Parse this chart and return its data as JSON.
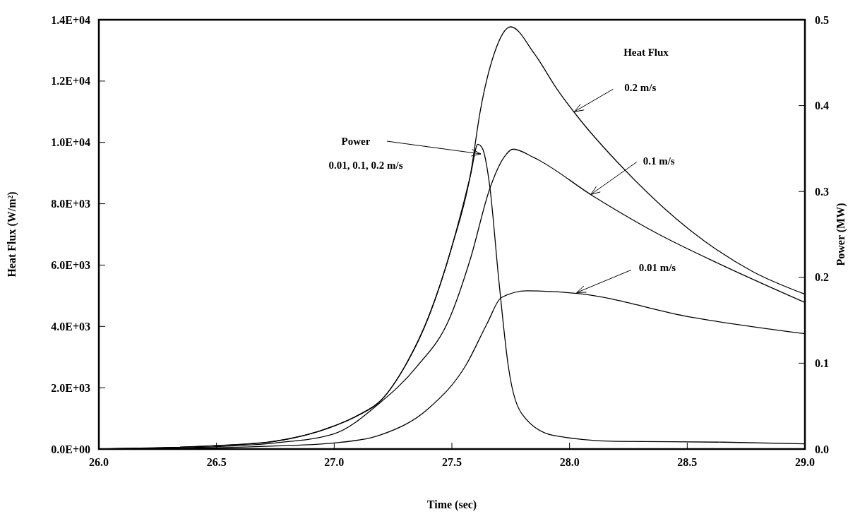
{
  "chart_data": {
    "type": "line",
    "xlabel": "Time (sec)",
    "ylabel": "Heat Flux (W/m²)",
    "y2label": "Power (MW)",
    "xlim": [
      26,
      29
    ],
    "xticks": [
      {
        "value": 26,
        "label": "26.0"
      },
      {
        "value": 26.5,
        "label": "26.5"
      },
      {
        "value": 27,
        "label": "27.0"
      },
      {
        "value": 27.5,
        "label": "27.5"
      },
      {
        "value": 28,
        "label": "28.0"
      },
      {
        "value": 28.5,
        "label": "28.5"
      },
      {
        "value": 29,
        "label": "29.0"
      }
    ],
    "ylim": [
      0,
      14000
    ],
    "yticks": [
      {
        "value": 0,
        "label": "0.0E+00"
      },
      {
        "value": 2000,
        "label": "2.0E+03"
      },
      {
        "value": 4000,
        "label": "4.0E+03"
      },
      {
        "value": 6000,
        "label": "6.0E+03"
      },
      {
        "value": 8000,
        "label": "8.0E+03"
      },
      {
        "value": 10000,
        "label": "1.0E+04"
      },
      {
        "value": 12000,
        "label": "1.2E+04"
      },
      {
        "value": 14000,
        "label": "1.4E+04"
      }
    ],
    "y2lim": [
      0,
      0.5
    ],
    "y2ticks": [
      {
        "value": 0,
        "label": "0.0"
      },
      {
        "value": 0.1,
        "label": "0.1"
      },
      {
        "value": 0.2,
        "label": "0.2"
      },
      {
        "value": 0.3,
        "label": "0.3"
      },
      {
        "value": 0.4,
        "label": "0.4"
      },
      {
        "value": 0.5,
        "label": "0.5"
      }
    ],
    "grid": false,
    "marker": "none",
    "line_style": "solid",
    "series": [
      {
        "color": "#000000",
        "x": [
          26,
          26.25,
          26.5,
          26.75,
          27,
          27.1,
          27.2,
          27.3,
          27.4,
          27.5,
          27.58,
          27.62,
          27.68,
          27.75,
          27.85,
          27.95,
          28.03,
          28.23,
          28.51,
          28.78,
          29
        ],
        "values": [
          0,
          40,
          110,
          260,
          750,
          1100,
          1600,
          2700,
          4300,
          6600,
          9000,
          11000,
          12900,
          13770,
          12900,
          11700,
          10880,
          9140,
          7150,
          5780,
          5050
        ]
      },
      {
        "color": "#000000",
        "x": [
          26,
          26.25,
          26.5,
          26.75,
          27,
          27.19,
          27.35,
          27.49,
          27.58,
          27.66,
          27.72,
          27.76,
          27.85,
          28.1,
          28.37,
          28.65,
          29
        ],
        "values": [
          0,
          30,
          80,
          200,
          500,
          1480,
          2680,
          4260,
          6240,
          8470,
          9500,
          9780,
          9500,
          8250,
          7040,
          5990,
          4780
        ]
      },
      {
        "color": "#000000",
        "x": [
          26,
          26.5,
          26.75,
          27,
          27.2,
          27.4,
          27.56,
          27.65,
          27.71,
          27.82,
          28.04,
          28.51,
          29
        ],
        "values": [
          0,
          40,
          100,
          200,
          470,
          1320,
          2740,
          4100,
          4940,
          5160,
          5070,
          4310,
          3760
        ]
      },
      {
        "color": "#000000",
        "axis": "y2",
        "x": [
          26,
          26.5,
          26.75,
          27,
          27.1,
          27.2,
          27.3,
          27.4,
          27.5,
          27.58,
          27.61,
          27.63,
          27.66,
          27.7,
          27.74,
          27.8,
          27.93,
          28.2,
          28.65,
          29
        ],
        "values": [
          0,
          0.004,
          0.009,
          0.027,
          0.039,
          0.057,
          0.096,
          0.153,
          0.236,
          0.32,
          0.355,
          0.35,
          0.308,
          0.195,
          0.096,
          0.04,
          0.016,
          0.009,
          0.008,
          0.006
        ]
      }
    ],
    "annotations": [
      "Heat Flux",
      {
        "text": "0.2 m/s",
        "x": 28.02,
        "y": 11000
      },
      {
        "text": "0.1 m/s",
        "x": 28.09,
        "y": 8300
      },
      {
        "text": "0.01 m/s",
        "x": 28.03,
        "y": 5100
      },
      "Power",
      "0.01, 0.1, 0.2 m/s"
    ]
  }
}
